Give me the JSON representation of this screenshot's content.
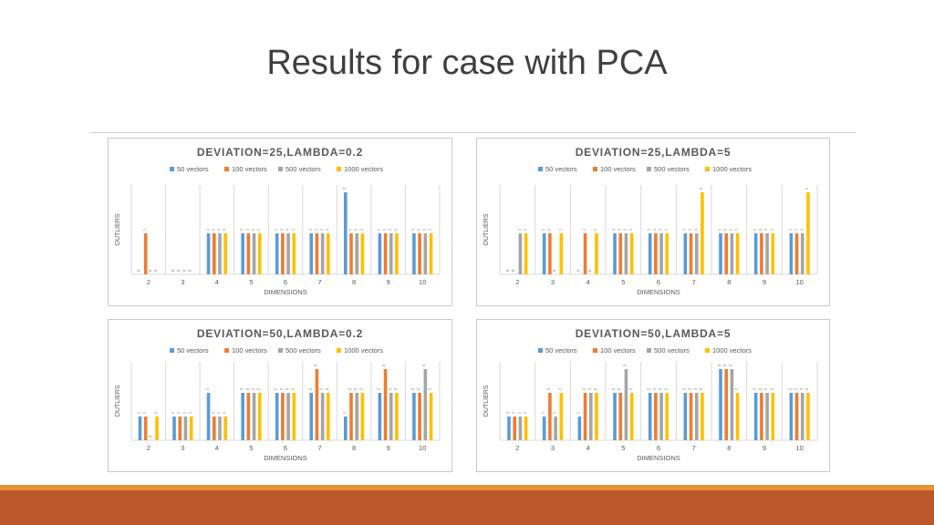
{
  "slide": {
    "title": "Results for case with PCA"
  },
  "colors": [
    "#5b9bd5",
    "#ed7d31",
    "#a5a5a5",
    "#ffc000"
  ],
  "chart_data": [
    {
      "type": "bar",
      "title": "DEVIATION=25,LAMBDA=0.2",
      "xlabel": "DIMENSIONS",
      "ylabel": "OUTLIERS",
      "ylim": [
        0,
        2
      ],
      "grid": "vertical",
      "legend": "top",
      "categories": [
        "2",
        "3",
        "4",
        "5",
        "6",
        "7",
        "8",
        "9",
        "10"
      ],
      "series": [
        {
          "name": "50 vectors",
          "values": [
            0,
            0,
            1,
            1,
            1,
            1,
            2,
            1,
            1
          ]
        },
        {
          "name": "100 vectors",
          "values": [
            1,
            0,
            1,
            1,
            1,
            1,
            1,
            1,
            1
          ]
        },
        {
          "name": "500 vectors",
          "values": [
            0,
            0,
            1,
            1,
            1,
            1,
            1,
            1,
            1
          ]
        },
        {
          "name": "1000 vectors",
          "values": [
            0,
            0,
            1,
            1,
            1,
            1,
            1,
            1,
            1
          ]
        }
      ]
    },
    {
      "type": "bar",
      "title": "DEVIATION=25,LAMBDA=5",
      "xlabel": "DIMENSIONS",
      "ylabel": "OUTLIERS",
      "ylim": [
        0,
        2
      ],
      "grid": "vertical",
      "legend": "top",
      "categories": [
        "2",
        "3",
        "4",
        "5",
        "6",
        "7",
        "8",
        "9",
        "10"
      ],
      "series": [
        {
          "name": "50 vectors",
          "values": [
            0,
            1,
            0,
            1,
            1,
            1,
            1,
            1,
            1
          ]
        },
        {
          "name": "100 vectors",
          "values": [
            0,
            1,
            1,
            1,
            1,
            1,
            1,
            1,
            1
          ]
        },
        {
          "name": "500 vectors",
          "values": [
            1,
            0,
            0,
            1,
            1,
            1,
            1,
            1,
            1
          ]
        },
        {
          "name": "1000 vectors",
          "values": [
            1,
            1,
            1,
            1,
            1,
            2,
            1,
            1,
            2
          ]
        }
      ]
    },
    {
      "type": "bar",
      "title": "DEVIATION=50,LAMBDA=0.2",
      "xlabel": "DIMENSIONS",
      "ylabel": "OUTLIERS",
      "ylim": [
        0,
        3
      ],
      "grid": "vertical",
      "legend": "top",
      "categories": [
        "2",
        "3",
        "4",
        "5",
        "6",
        "7",
        "8",
        "9",
        "10"
      ],
      "series": [
        {
          "name": "50 vectors",
          "values": [
            1,
            1,
            2,
            2,
            2,
            2,
            1,
            2,
            2
          ]
        },
        {
          "name": "100 vectors",
          "values": [
            1,
            1,
            1,
            2,
            2,
            3,
            2,
            3,
            2
          ]
        },
        {
          "name": "500 vectors",
          "values": [
            0,
            1,
            1,
            2,
            2,
            2,
            2,
            2,
            3
          ]
        },
        {
          "name": "1000 vectors",
          "values": [
            1,
            1,
            1,
            2,
            2,
            2,
            2,
            2,
            2
          ]
        }
      ]
    },
    {
      "type": "bar",
      "title": "DEVIATION=50,LAMBDA=5",
      "xlabel": "DIMENSIONS",
      "ylabel": "OUTLIERS",
      "ylim": [
        0,
        3
      ],
      "grid": "vertical",
      "legend": "top",
      "categories": [
        "2",
        "3",
        "4",
        "5",
        "6",
        "7",
        "8",
        "9",
        "10"
      ],
      "series": [
        {
          "name": "50 vectors",
          "values": [
            1,
            1,
            1,
            2,
            2,
            2,
            3,
            2,
            2
          ]
        },
        {
          "name": "100 vectors",
          "values": [
            1,
            2,
            2,
            2,
            2,
            2,
            3,
            2,
            2
          ]
        },
        {
          "name": "500 vectors",
          "values": [
            1,
            1,
            2,
            3,
            2,
            2,
            3,
            2,
            2
          ]
        },
        {
          "name": "1000 vectors",
          "values": [
            1,
            2,
            2,
            2,
            2,
            2,
            2,
            2,
            2
          ]
        }
      ]
    }
  ]
}
